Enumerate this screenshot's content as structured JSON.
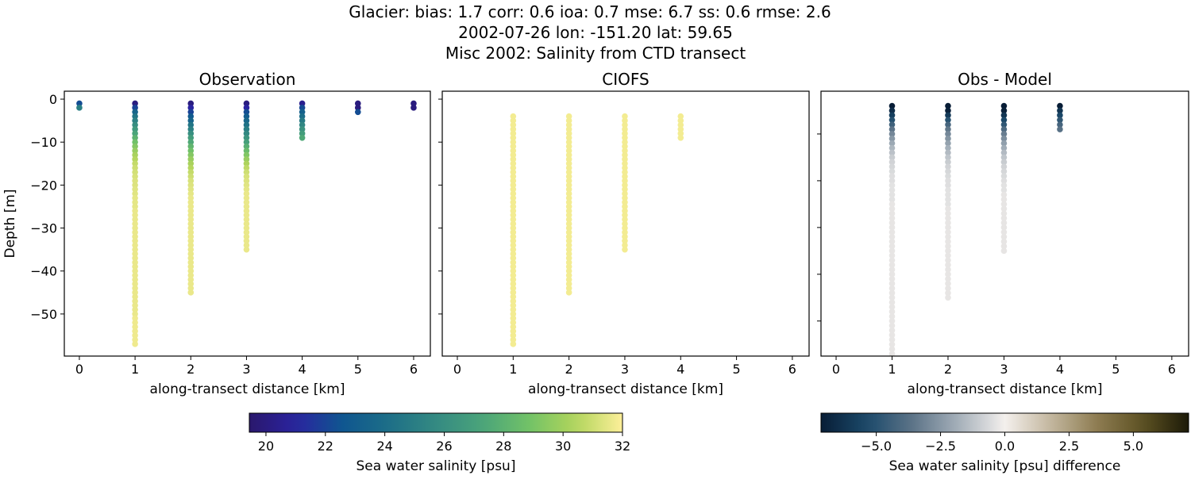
{
  "suptitle": [
    "Glacier: bias: 1.7  corr: 0.6  ioa: 0.7  mse: 6.7  ss: 0.6  rmse: 2.6",
    "2002-07-26 lon: -151.20 lat: 59.65",
    "Misc 2002: Salinity from CTD transect"
  ],
  "chart_data": [
    {
      "type": "scatter",
      "title": "Observation",
      "xlabel": "along-transect distance [km]",
      "ylabel": "Depth [m]",
      "xlim": [
        -0.27,
        6.3
      ],
      "ylim": [
        -59.8,
        1.85
      ],
      "xticks": [
        0,
        1,
        2,
        3,
        4,
        5,
        6
      ],
      "yticks": [
        0,
        -10,
        -20,
        -30,
        -40,
        -50
      ],
      "ytick_labels": [
        "0",
        "−10",
        "−20",
        "−30",
        "−40",
        "−50"
      ],
      "colormap": "haline",
      "profiles": [
        {
          "x": 0,
          "depth_top": -1,
          "values": [
            22.3,
            25.0
          ]
        },
        {
          "x": 1,
          "depth_top": -1,
          "values": [
            20.0,
            22.0,
            23.5,
            24.5,
            25.2,
            25.9,
            26.6,
            27.3,
            28.0,
            28.8,
            29.3,
            29.8,
            30.2,
            30.5,
            30.8,
            31.0,
            31.1,
            31.2,
            31.3,
            31.3,
            31.4,
            31.4,
            31.5,
            31.5,
            31.5,
            31.6,
            31.6,
            31.6,
            31.6,
            31.6,
            31.6,
            31.6,
            31.6,
            31.6,
            31.6,
            31.6,
            31.6,
            31.6,
            31.6,
            31.6,
            31.6,
            31.6,
            31.6,
            31.6,
            31.6,
            31.6,
            31.6,
            31.6,
            31.6,
            31.6,
            31.7,
            31.7,
            31.7,
            31.7,
            31.7,
            31.7,
            31.7
          ]
        },
        {
          "x": 2,
          "depth_top": -1,
          "values": [
            20.0,
            21.0,
            22.0,
            22.8,
            23.5,
            24.5,
            25.2,
            26.0,
            26.8,
            27.5,
            28.2,
            28.8,
            29.3,
            29.8,
            30.2,
            30.5,
            30.8,
            31.0,
            31.2,
            31.3,
            31.4,
            31.5,
            31.6,
            31.6,
            31.6,
            31.6,
            31.6,
            31.6,
            31.6,
            31.6,
            31.6,
            31.6,
            31.6,
            31.6,
            31.6,
            31.6,
            31.6,
            31.6,
            31.6,
            31.6,
            31.6,
            31.6,
            31.6,
            31.6,
            31.6
          ]
        },
        {
          "x": 3,
          "depth_top": -1,
          "values": [
            20.0,
            21.0,
            22.3,
            23.0,
            23.7,
            24.3,
            25.0,
            25.6,
            26.3,
            27.0,
            27.8,
            28.5,
            29.2,
            29.8,
            30.3,
            30.7,
            31.0,
            31.2,
            31.3,
            31.4,
            31.5,
            31.6,
            31.6,
            31.6,
            31.6,
            31.6,
            31.6,
            31.6,
            31.6,
            31.6,
            31.6,
            31.6,
            31.6,
            31.6,
            31.6
          ]
        },
        {
          "x": 4,
          "depth_top": -1,
          "values": [
            20.5,
            22.2,
            23.2,
            24.0,
            24.8,
            25.5,
            26.2,
            26.8,
            27.5
          ]
        },
        {
          "x": 5,
          "depth_top": -1,
          "values": [
            20.0,
            20.0,
            22.3
          ]
        },
        {
          "x": 6,
          "depth_top": -1,
          "values": [
            20.0,
            20.0
          ]
        }
      ]
    },
    {
      "type": "scatter",
      "title": "CIOFS",
      "xlabel": "along-transect distance [km]",
      "xlim": [
        -0.27,
        6.3
      ],
      "ylim": [
        -59.8,
        1.85
      ],
      "xticks": [
        0,
        1,
        2,
        3,
        4,
        5,
        6
      ],
      "yticks": [
        0,
        -10,
        -20,
        -30,
        -40,
        -50
      ],
      "colormap": "haline",
      "profiles": [
        {
          "x": 1,
          "depth_top": -4,
          "depth_bottom": -57,
          "value": 31.8
        },
        {
          "x": 2,
          "depth_top": -4,
          "depth_bottom": -45,
          "value": 31.8
        },
        {
          "x": 3,
          "depth_top": -4,
          "depth_bottom": -35,
          "value": 31.8
        },
        {
          "x": 4,
          "depth_top": -4,
          "depth_bottom": -9,
          "value": 31.8
        }
      ]
    },
    {
      "type": "scatter",
      "title": "Obs - Model",
      "xlabel": "along-transect distance [km]",
      "xlim": [
        -0.27,
        6.3
      ],
      "ylim": [
        -57.5,
        -0.85
      ],
      "xticks": [
        0,
        1,
        2,
        3,
        4,
        5,
        6
      ],
      "yticks": [
        -10,
        -20,
        -30,
        -40,
        -50
      ],
      "colormap": "diff",
      "profiles": [
        {
          "x": 1,
          "depth_top": -4,
          "values": [
            -7.2,
            -6.5,
            -5.8,
            -5.1,
            -4.4,
            -3.6,
            -3.0,
            -2.5,
            -2.0,
            -1.6,
            -1.3,
            -1.0,
            -0.8,
            -0.7,
            -0.6,
            -0.5,
            -0.5,
            -0.4,
            -0.4,
            -0.4,
            -0.4,
            -0.3,
            -0.3,
            -0.3,
            -0.3,
            -0.3,
            -0.3,
            -0.3,
            -0.3,
            -0.3,
            -0.3,
            -0.3,
            -0.3,
            -0.3,
            -0.3,
            -0.3,
            -0.3,
            -0.3,
            -0.3,
            -0.3,
            -0.3,
            -0.3,
            -0.3,
            -0.3,
            -0.3,
            -0.3,
            -0.3,
            -0.3,
            -0.3,
            -0.3,
            -0.3,
            -0.3,
            -0.3,
            -0.3
          ]
        },
        {
          "x": 2,
          "depth_top": -4,
          "values": [
            -7.2,
            -7.0,
            -6.0,
            -5.0,
            -4.2,
            -3.5,
            -3.0,
            -2.6,
            -2.2,
            -1.8,
            -1.5,
            -1.2,
            -1.0,
            -0.8,
            -0.7,
            -0.6,
            -0.5,
            -0.5,
            -0.4,
            -0.4,
            -0.4,
            -0.4,
            -0.3,
            -0.3,
            -0.3,
            -0.3,
            -0.3,
            -0.3,
            -0.3,
            -0.3,
            -0.3,
            -0.3,
            -0.3,
            -0.3,
            -0.3,
            -0.3,
            -0.3,
            -0.3,
            -0.3,
            -0.3,
            -0.3,
            -0.3
          ]
        },
        {
          "x": 3,
          "depth_top": -4,
          "values": [
            -7.2,
            -7.0,
            -6.2,
            -5.5,
            -4.8,
            -4.0,
            -3.3,
            -2.8,
            -2.3,
            -1.9,
            -1.5,
            -1.2,
            -1.0,
            -0.8,
            -0.7,
            -0.6,
            -0.5,
            -0.4,
            -0.4,
            -0.3,
            -0.3,
            -0.3,
            -0.3,
            -0.3,
            -0.3,
            -0.3,
            -0.3,
            -0.3,
            -0.3,
            -0.3,
            -0.3,
            -0.3
          ]
        },
        {
          "x": 4,
          "depth_top": -4,
          "values": [
            -7.2,
            -6.2,
            -5.5,
            -4.8,
            -4.2,
            -3.7
          ]
        }
      ]
    }
  ],
  "colorbars": [
    {
      "label": "Sea water salinity [psu]",
      "range": [
        19.44,
        32
      ],
      "ticks": [
        20,
        22,
        24,
        26,
        28,
        30,
        32
      ],
      "tick_labels": [
        "20",
        "22",
        "24",
        "26",
        "28",
        "30",
        "32"
      ],
      "colormap": "haline"
    },
    {
      "label": "Sea water salinity [psu] difference",
      "range": [
        -7.15,
        7.15
      ],
      "ticks": [
        -5,
        -2.5,
        0,
        2.5,
        5
      ],
      "tick_labels": [
        "−5.0",
        "−2.5",
        "0.0",
        "2.5",
        "5.0"
      ],
      "colormap": "diff"
    }
  ],
  "colormaps": {
    "haline": [
      "#2a186c",
      "#2a23a0",
      "#0f5690",
      "#1d6f87",
      "#348a82",
      "#4aa47a",
      "#72c267",
      "#b2d55b",
      "#fdef9a"
    ],
    "diff": [
      "#081d36",
      "#1b4a6b",
      "#5d7488",
      "#a5b0ba",
      "#f4f0ed",
      "#c3b79e",
      "#8e7c52",
      "#5d5222",
      "#1c1a08"
    ]
  }
}
